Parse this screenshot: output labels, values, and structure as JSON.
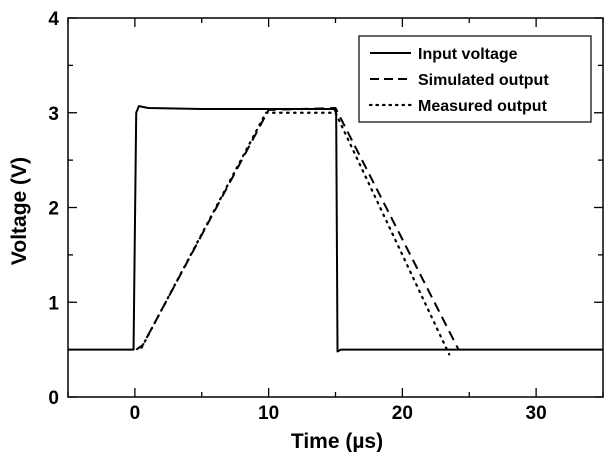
{
  "chart_data": {
    "type": "line",
    "xlabel": "Time (µs)",
    "ylabel": "Voltage (V)",
    "xlim": [
      -5,
      35
    ],
    "ylim": [
      0,
      4
    ],
    "x_ticks": [
      0,
      10,
      20,
      30
    ],
    "y_ticks": [
      0,
      1,
      2,
      3,
      4
    ],
    "grid": false,
    "legend_position": "top-right",
    "series": [
      {
        "name": "Input voltage",
        "style": "solid",
        "x": [
          -5,
          -0.1,
          0.1,
          0.3,
          1,
          5,
          10,
          14.9,
          15.05,
          15.15,
          15.4,
          16,
          20,
          25,
          30,
          35
        ],
        "y": [
          0.5,
          0.5,
          3.0,
          3.07,
          3.05,
          3.04,
          3.04,
          3.04,
          3.0,
          0.48,
          0.5,
          0.5,
          0.5,
          0.5,
          0.5,
          0.5
        ]
      },
      {
        "name": "Simulated output",
        "style": "dashed",
        "x": [
          0.1,
          0.6,
          10,
          15,
          24.2
        ],
        "y": [
          0.5,
          0.55,
          3.03,
          3.05,
          0.5
        ]
      },
      {
        "name": "Measured output",
        "style": "dotted",
        "x": [
          0.5,
          9.8,
          15,
          23.5
        ],
        "y": [
          0.52,
          3.0,
          3.0,
          0.45
        ]
      }
    ]
  }
}
